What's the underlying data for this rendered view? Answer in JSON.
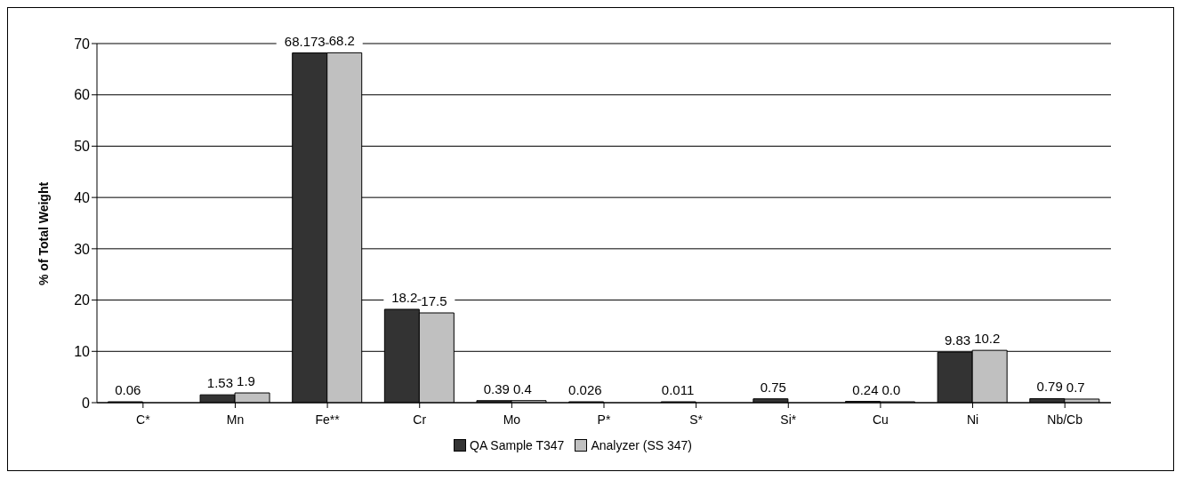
{
  "chart_data": {
    "type": "bar",
    "ylabel": "% of Total Weight",
    "categories": [
      "C*",
      "Mn",
      "Fe**",
      "Cr",
      "Mo",
      "P*",
      "S*",
      "Si*",
      "Cu",
      "Ni",
      "Nb/Cb"
    ],
    "series": [
      {
        "name": "QA Sample T347",
        "color": "#333333",
        "values": [
          0.06,
          1.53,
          68.173,
          18.2,
          0.39,
          0.026,
          0.011,
          0.75,
          0.24,
          9.83,
          0.79
        ],
        "value_labels": [
          "0.06",
          "1.53",
          "68.173",
          "18.2",
          "0.39",
          "0.026",
          "0.011",
          "0.75",
          "0.24",
          "9.83",
          "0.79"
        ]
      },
      {
        "name": "Analyzer (SS 347)",
        "color": "#c0c0c0",
        "values": [
          null,
          1.9,
          68.2,
          17.5,
          0.4,
          null,
          null,
          null,
          0,
          10.2,
          0.7
        ],
        "value_labels": [
          null,
          "1.9",
          "68.2",
          "17.5",
          "0.4",
          null,
          null,
          null,
          "0.0",
          "10.2",
          "0.7"
        ]
      }
    ],
    "ylim": [
      0,
      70
    ],
    "yticks": [
      0,
      10,
      20,
      30,
      40,
      50,
      60,
      70
    ],
    "grid": "y",
    "legend": "bottom"
  }
}
